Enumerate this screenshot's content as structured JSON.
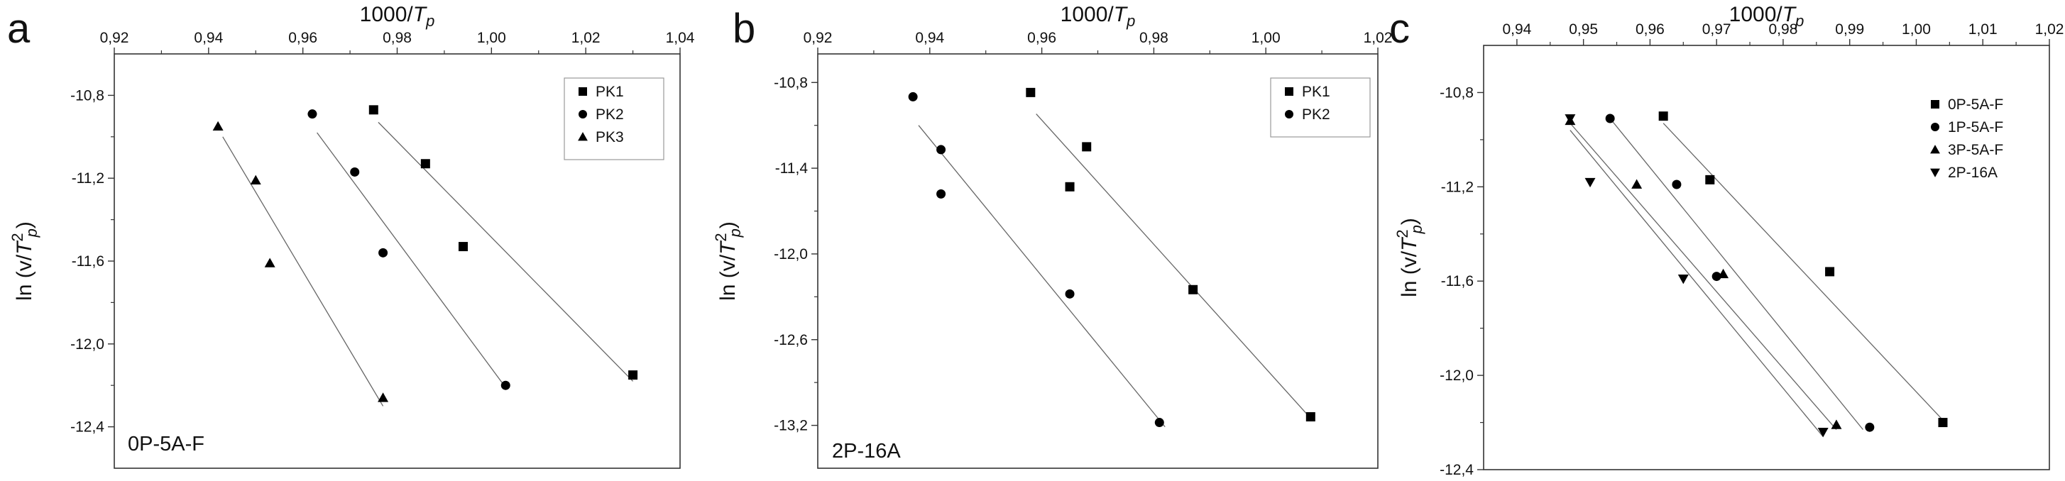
{
  "figure": {
    "panels": [
      {
        "letter": "a",
        "xlabel_prefix": "1000/",
        "xlabel_var": "T",
        "xlabel_sub": "p",
        "ylabel_prefix": "ln (v/",
        "ylabel_var": "T",
        "ylabel_sup": "2",
        "ylabel_sub": "p",
        "ylabel_suffix": ")",
        "sample": "0P-5A-F"
      },
      {
        "letter": "b",
        "xlabel_prefix": "1000/",
        "xlabel_var": "T",
        "xlabel_sub": "p",
        "ylabel_prefix": "ln (v/",
        "ylabel_var": "T",
        "ylabel_sup": "2",
        "ylabel_sub": "p",
        "ylabel_suffix": ")",
        "sample": "2P-16A"
      },
      {
        "letter": "c",
        "xlabel_prefix": "1000/",
        "xlabel_var": "T",
        "xlabel_sub": "p",
        "ylabel_prefix": "ln (v/",
        "ylabel_var": "T",
        "ylabel_sup": "2",
        "ylabel_sub": "p",
        "ylabel_suffix": ")",
        "sample": ""
      }
    ]
  },
  "chart_data": [
    {
      "type": "scatter",
      "title": "",
      "xlabel": "1000/Tp",
      "ylabel": "ln (v/Tp^2)",
      "xlim": [
        0.92,
        1.04
      ],
      "ylim": [
        -12.6,
        -10.6
      ],
      "xticks": [
        "0,92",
        "0,94",
        "0,96",
        "0,98",
        "1,00",
        "1,02",
        "1,04"
      ],
      "yticks": [
        "-10,8",
        "-11,2",
        "-11,6",
        "-12,0",
        "-12,4"
      ],
      "x_axis_position": "top",
      "legend_position": "top-right",
      "annotation": "0P-5A-F",
      "series": [
        {
          "name": "PK1",
          "marker": "square",
          "points": [
            [
              0.975,
              -10.87
            ],
            [
              0.986,
              -11.13
            ],
            [
              0.994,
              -11.53
            ],
            [
              1.03,
              -12.15
            ]
          ],
          "fit": [
            [
              0.976,
              -10.93
            ],
            [
              1.03,
              -12.18
            ]
          ]
        },
        {
          "name": "PK2",
          "marker": "circle",
          "points": [
            [
              0.962,
              -10.89
            ],
            [
              0.971,
              -11.17
            ],
            [
              0.977,
              -11.56
            ],
            [
              1.003,
              -12.2
            ]
          ],
          "fit": [
            [
              0.963,
              -10.98
            ],
            [
              1.003,
              -12.21
            ]
          ]
        },
        {
          "name": "PK3",
          "marker": "triangle-up",
          "points": [
            [
              0.942,
              -10.95
            ],
            [
              0.95,
              -11.21
            ],
            [
              0.953,
              -11.61
            ],
            [
              0.977,
              -12.26
            ]
          ],
          "fit": [
            [
              0.943,
              -11.0
            ],
            [
              0.977,
              -12.3
            ]
          ]
        }
      ]
    },
    {
      "type": "scatter",
      "title": "",
      "xlabel": "1000/Tp",
      "ylabel": "ln (v/Tp^2)",
      "xlim": [
        0.92,
        1.02
      ],
      "ylim": [
        -13.5,
        -10.6
      ],
      "xticks": [
        "0,92",
        "0,94",
        "0,96",
        "0,98",
        "1,00",
        "1,02"
      ],
      "yticks": [
        "-10,8",
        "-11,4",
        "-12,0",
        "-12,6",
        "-13,2"
      ],
      "x_axis_position": "top",
      "legend_position": "top-right",
      "annotation": "2P-16A",
      "series": [
        {
          "name": "PK1",
          "marker": "square",
          "points": [
            [
              0.958,
              -10.87
            ],
            [
              0.968,
              -11.25
            ],
            [
              0.965,
              -11.53
            ],
            [
              0.987,
              -12.25
            ],
            [
              1.008,
              -13.14
            ]
          ],
          "fit": [
            [
              0.959,
              -11.02
            ],
            [
              1.008,
              -13.15
            ]
          ]
        },
        {
          "name": "PK2",
          "marker": "circle",
          "points": [
            [
              0.937,
              -10.9
            ],
            [
              0.942,
              -11.27
            ],
            [
              0.942,
              -11.58
            ],
            [
              0.965,
              -12.28
            ],
            [
              0.981,
              -13.18
            ]
          ],
          "fit": [
            [
              0.938,
              -11.1
            ],
            [
              0.982,
              -13.21
            ]
          ]
        }
      ]
    },
    {
      "type": "scatter",
      "title": "",
      "xlabel": "1000/Tp",
      "ylabel": "ln (v/Tp^2)",
      "xlim": [
        0.935,
        1.02
      ],
      "ylim": [
        -12.4,
        -10.6
      ],
      "xticks": [
        "0,94",
        "0,95",
        "0,96",
        "0,97",
        "0,98",
        "0,99",
        "1,00",
        "1,01",
        "1,02"
      ],
      "yticks": [
        "-10,8",
        "-11,2",
        "-11,6",
        "-12,0",
        "-12,4"
      ],
      "x_axis_position": "top",
      "legend_position": "top-right",
      "annotation": "",
      "series": [
        {
          "name": "0P-5A-F",
          "marker": "square",
          "points": [
            [
              0.962,
              -10.9
            ],
            [
              0.969,
              -11.17
            ],
            [
              0.987,
              -11.56
            ],
            [
              1.004,
              -12.2
            ]
          ],
          "fit": [
            [
              0.962,
              -10.93
            ],
            [
              1.004,
              -12.19
            ]
          ]
        },
        {
          "name": "1P-5A-F",
          "marker": "circle",
          "points": [
            [
              0.954,
              -10.91
            ],
            [
              0.964,
              -11.19
            ],
            [
              0.97,
              -11.58
            ],
            [
              0.993,
              -12.22
            ]
          ],
          "fit": [
            [
              0.954,
              -10.91
            ],
            [
              0.992,
              -12.23
            ]
          ]
        },
        {
          "name": "3P-5A-F",
          "marker": "triangle-up",
          "points": [
            [
              0.948,
              -10.92
            ],
            [
              0.958,
              -11.19
            ],
            [
              0.971,
              -11.57
            ],
            [
              0.988,
              -12.21
            ]
          ],
          "fit": [
            [
              0.948,
              -10.93
            ],
            [
              0.988,
              -12.23
            ]
          ]
        },
        {
          "name": "2P-16A",
          "marker": "triangle-down",
          "points": [
            [
              0.948,
              -10.91
            ],
            [
              0.951,
              -11.18
            ],
            [
              0.965,
              -11.59
            ],
            [
              0.986,
              -12.24
            ]
          ],
          "fit": [
            [
              0.948,
              -10.96
            ],
            [
              0.986,
              -12.26
            ]
          ]
        }
      ]
    }
  ]
}
